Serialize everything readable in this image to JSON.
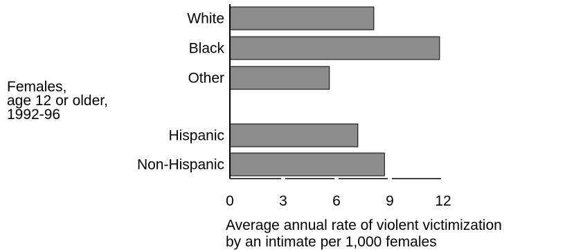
{
  "group_label": [
    "Females,",
    "age 12 or older,",
    "1992-96"
  ],
  "chart_data": {
    "type": "bar",
    "orientation": "horizontal",
    "categories": [
      "White",
      "Black",
      "Other",
      "Hispanic",
      "Non-Hispanic"
    ],
    "values": [
      8.1,
      11.8,
      5.6,
      7.2,
      8.7
    ],
    "xlabel": [
      "Average annual rate of violent victimization",
      "by an intimate per 1,000 females"
    ],
    "ylabel": "",
    "xlim": [
      0,
      12
    ],
    "xticks": [
      0,
      3,
      6,
      9,
      12
    ],
    "tick_labels": [
      "0",
      "3",
      "6",
      "9",
      "12"
    ],
    "grid": false,
    "bar_color": "#8c8c8c",
    "bar_edge_color": "#000000"
  }
}
